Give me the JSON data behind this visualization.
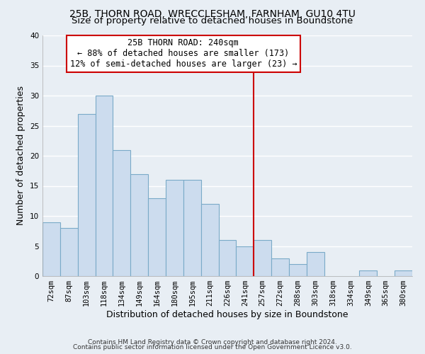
{
  "title": "25B, THORN ROAD, WRECCLESHAM, FARNHAM, GU10 4TU",
  "subtitle": "Size of property relative to detached houses in Boundstone",
  "xlabel": "Distribution of detached houses by size in Boundstone",
  "ylabel": "Number of detached properties",
  "footer_line1": "Contains HM Land Registry data © Crown copyright and database right 2024.",
  "footer_line2": "Contains public sector information licensed under the Open Government Licence v3.0.",
  "bar_labels": [
    "72sqm",
    "87sqm",
    "103sqm",
    "118sqm",
    "134sqm",
    "149sqm",
    "164sqm",
    "180sqm",
    "195sqm",
    "211sqm",
    "226sqm",
    "241sqm",
    "257sqm",
    "272sqm",
    "288sqm",
    "303sqm",
    "318sqm",
    "334sqm",
    "349sqm",
    "365sqm",
    "380sqm"
  ],
  "bar_values": [
    9,
    8,
    27,
    30,
    21,
    17,
    13,
    16,
    16,
    12,
    6,
    5,
    6,
    3,
    2,
    4,
    0,
    0,
    1,
    0,
    1
  ],
  "bar_color": "#ccdcee",
  "bar_edge_color": "#7aaac8",
  "reference_line_x": 11.5,
  "reference_line_color": "#cc0000",
  "annotation_title": "25B THORN ROAD: 240sqm",
  "annotation_line1": "← 88% of detached houses are smaller (173)",
  "annotation_line2": "12% of semi-detached houses are larger (23) →",
  "annotation_box_color": "#ffffff",
  "annotation_box_edge_color": "#cc0000",
  "ylim": [
    0,
    40
  ],
  "yticks": [
    0,
    5,
    10,
    15,
    20,
    25,
    30,
    35,
    40
  ],
  "background_color": "#e8eef4",
  "grid_color": "#ffffff",
  "title_fontsize": 10,
  "subtitle_fontsize": 9.5,
  "axis_label_fontsize": 9,
  "tick_fontsize": 7.5,
  "annotation_fontsize": 8.5,
  "footer_fontsize": 6.5
}
